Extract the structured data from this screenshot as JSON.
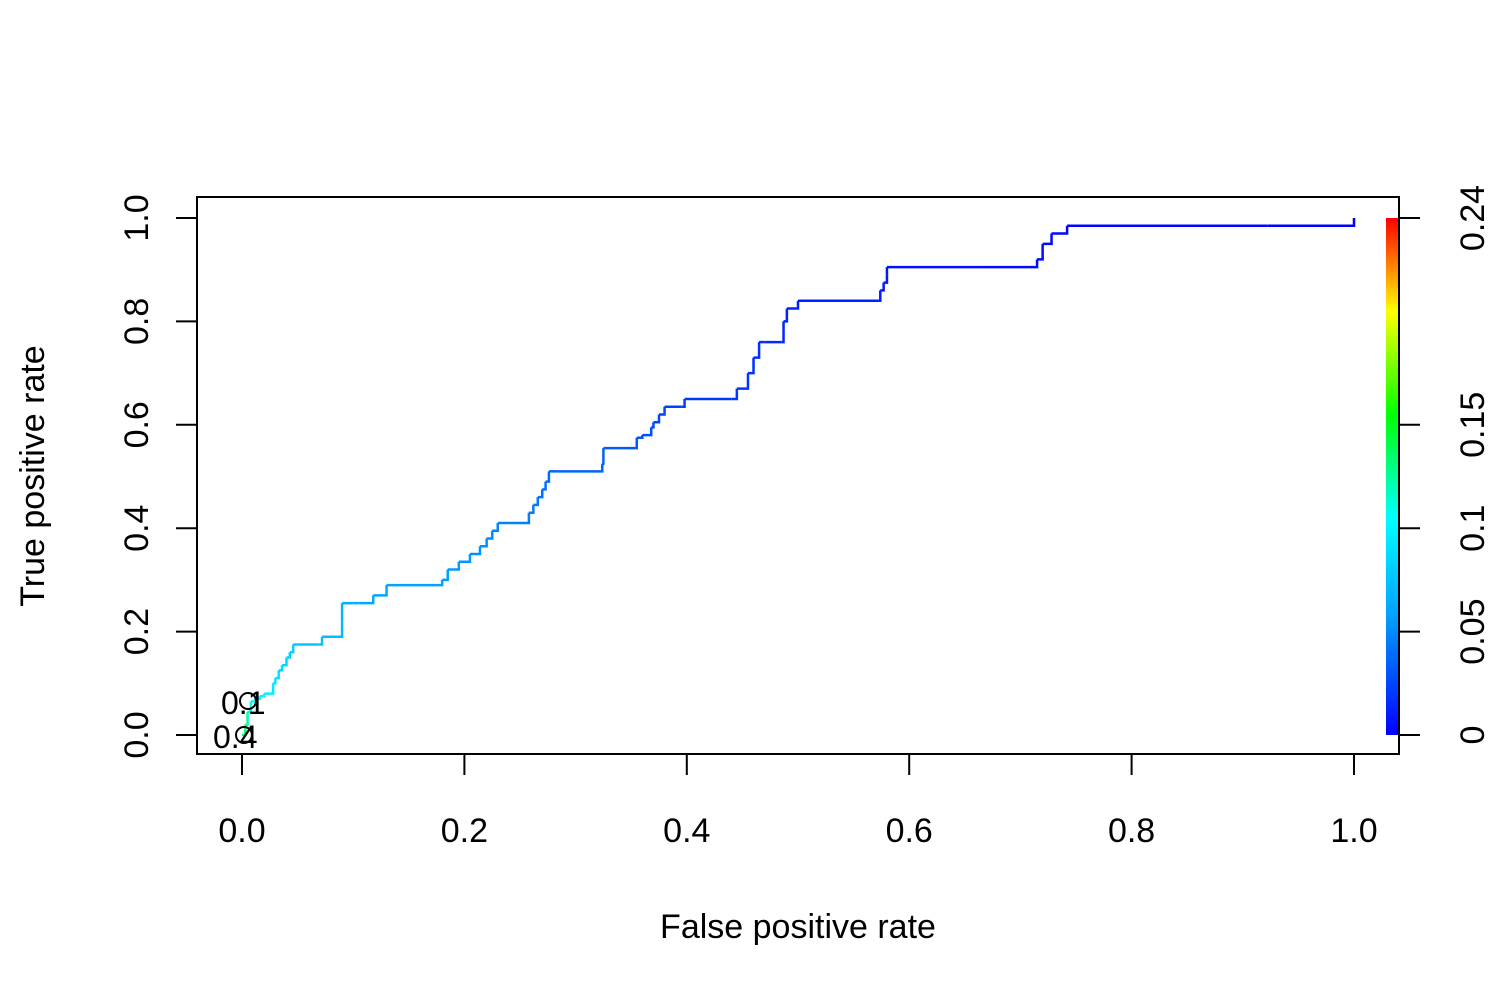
{
  "chart_data": {
    "type": "line",
    "title": "",
    "xlabel": "False positive rate",
    "ylabel": "True positive rate",
    "xlim": [
      0,
      1
    ],
    "ylim": [
      0,
      1
    ],
    "xticks": [
      "0.0",
      "0.2",
      "0.4",
      "0.6",
      "0.8",
      "1.0"
    ],
    "yticks": [
      "0.0",
      "0.2",
      "0.4",
      "0.6",
      "0.8",
      "1.0"
    ],
    "colorbar": {
      "ticks": [
        "0",
        "0.05",
        "0.1",
        "0.15",
        "0.24"
      ],
      "range": [
        0,
        0.24
      ],
      "colors": [
        "#0000ff",
        "#00ffff",
        "#00ff00",
        "#ffff00",
        "#ff0000"
      ]
    },
    "annotations": [
      "0.1",
      "0.4"
    ],
    "grid": false,
    "series": [
      {
        "x": [
          0.0,
          0.003,
          0.005,
          0.008,
          0.012,
          0.016,
          0.02,
          0.025,
          0.028,
          0.03,
          0.033,
          0.036,
          0.04,
          0.043,
          0.046,
          0.05,
          0.07,
          0.072,
          0.086,
          0.09,
          0.09,
          0.1,
          0.105,
          0.118,
          0.13,
          0.18,
          0.185,
          0.195,
          0.205,
          0.214,
          0.22,
          0.225,
          0.23,
          0.25,
          0.258,
          0.262,
          0.266,
          0.27,
          0.273,
          0.276,
          0.285,
          0.324,
          0.325,
          0.34,
          0.355,
          0.36,
          0.368,
          0.37,
          0.375,
          0.38,
          0.395,
          0.398,
          0.44,
          0.445,
          0.455,
          0.46,
          0.465,
          0.47,
          0.485,
          0.487,
          0.49,
          0.5,
          0.572,
          0.574,
          0.577,
          0.58,
          0.58,
          0.665,
          0.715,
          0.72,
          0.728,
          0.742,
          0.922,
          1.0
        ],
        "y": [
          0.0,
          0.02,
          0.045,
          0.065,
          0.07,
          0.075,
          0.08,
          0.08,
          0.1,
          0.11,
          0.125,
          0.135,
          0.15,
          0.16,
          0.175,
          0.175,
          0.175,
          0.19,
          0.19,
          0.22,
          0.255,
          0.255,
          0.255,
          0.27,
          0.29,
          0.3,
          0.32,
          0.335,
          0.35,
          0.365,
          0.38,
          0.395,
          0.41,
          0.41,
          0.43,
          0.445,
          0.46,
          0.475,
          0.49,
          0.51,
          0.51,
          0.525,
          0.555,
          0.555,
          0.575,
          0.58,
          0.595,
          0.605,
          0.62,
          0.635,
          0.635,
          0.65,
          0.65,
          0.67,
          0.7,
          0.73,
          0.76,
          0.76,
          0.76,
          0.8,
          0.825,
          0.84,
          0.84,
          0.86,
          0.875,
          0.89,
          0.905,
          0.905,
          0.92,
          0.95,
          0.97,
          0.985,
          0.985,
          1.0
        ]
      }
    ]
  }
}
